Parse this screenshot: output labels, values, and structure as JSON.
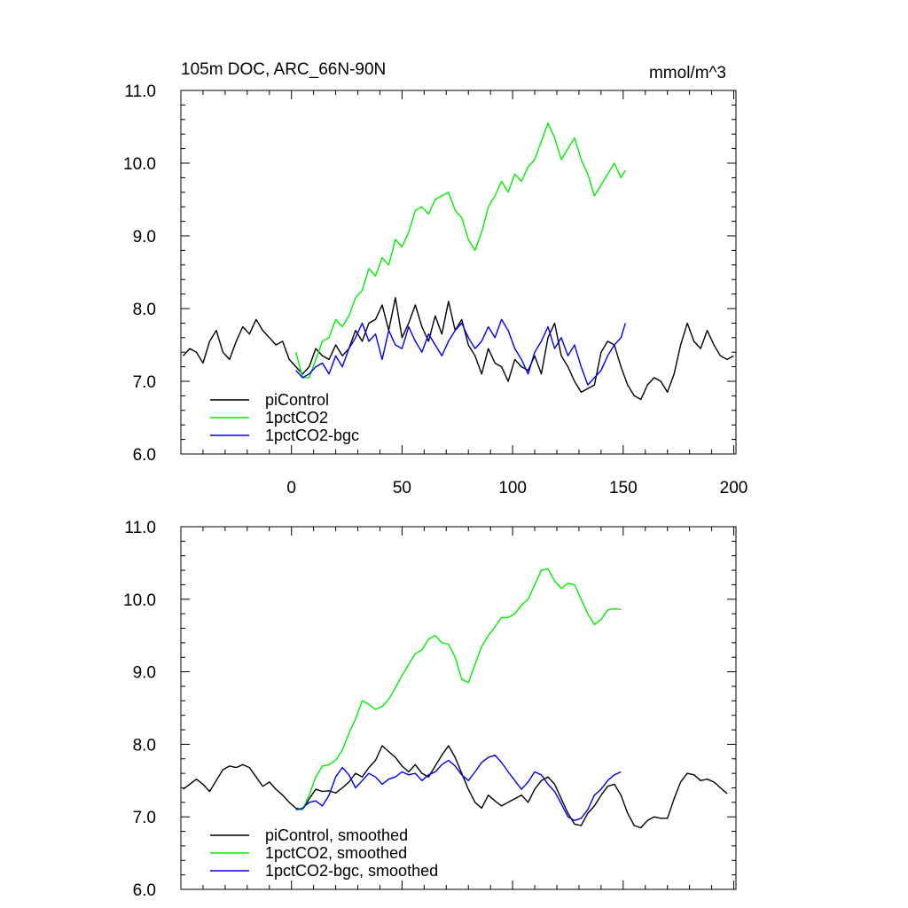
{
  "chart_data": [
    {
      "type": "line",
      "title": "105m DOC, ARC_66N-90N",
      "units": "mmol/m^3",
      "xlabel": "",
      "ylabel": "",
      "xlim": [
        -50,
        201
      ],
      "ylim": [
        6.0,
        11.0
      ],
      "yticks": [
        "6.0",
        "7.0",
        "8.0",
        "9.0",
        "10.0",
        "11.0"
      ],
      "xticks": [
        "0",
        "50",
        "100",
        "150",
        "200"
      ],
      "grid": false,
      "legend_position": "bottom-left",
      "series": [
        {
          "name": "piControl",
          "color": "#000000",
          "x": [
            -49,
            -46,
            -43,
            -40,
            -37,
            -34,
            -31,
            -28,
            -25,
            -22,
            -19,
            -16,
            -13,
            -10,
            -7,
            -4,
            -1,
            2,
            5,
            8,
            11,
            14,
            17,
            20,
            23,
            26,
            29,
            32,
            35,
            38,
            41,
            44,
            47,
            50,
            53,
            56,
            59,
            62,
            65,
            68,
            71,
            74,
            77,
            80,
            83,
            86,
            89,
            92,
            95,
            98,
            101,
            104,
            107,
            110,
            113,
            116,
            119,
            122,
            125,
            128,
            131,
            134,
            137,
            140,
            143,
            146,
            149,
            152,
            155,
            158,
            161,
            164,
            167,
            170,
            173,
            176,
            179,
            182,
            185,
            188,
            191,
            194,
            197,
            200
          ],
          "values": [
            7.35,
            7.45,
            7.4,
            7.25,
            7.55,
            7.7,
            7.4,
            7.3,
            7.55,
            7.75,
            7.65,
            7.85,
            7.7,
            7.6,
            7.5,
            7.55,
            7.3,
            7.2,
            7.1,
            7.2,
            7.45,
            7.35,
            7.3,
            7.5,
            7.35,
            7.45,
            7.7,
            7.55,
            7.8,
            7.85,
            8.05,
            7.7,
            8.15,
            7.6,
            7.8,
            8.05,
            7.75,
            7.55,
            7.9,
            7.65,
            8.1,
            7.7,
            7.85,
            7.5,
            7.35,
            7.1,
            7.45,
            7.25,
            7.2,
            7.0,
            7.3,
            7.2,
            7.15,
            7.35,
            7.1,
            7.6,
            7.8,
            7.35,
            7.2,
            7.0,
            6.85,
            6.9,
            6.95,
            7.4,
            7.55,
            7.5,
            7.2,
            6.95,
            6.8,
            6.75,
            6.95,
            7.05,
            7.0,
            6.85,
            7.1,
            7.5,
            7.8,
            7.55,
            7.45,
            7.7,
            7.5,
            7.35,
            7.3,
            7.35
          ]
        },
        {
          "name": "1pctCO2",
          "color": "#00ee00",
          "x": [
            2,
            5,
            8,
            11,
            14,
            17,
            20,
            23,
            26,
            29,
            32,
            35,
            38,
            41,
            44,
            47,
            50,
            53,
            56,
            59,
            62,
            65,
            68,
            71,
            74,
            77,
            80,
            83,
            86,
            89,
            92,
            95,
            98,
            101,
            104,
            107,
            110,
            113,
            116,
            119,
            122,
            125,
            128,
            131,
            134,
            137,
            140,
            143,
            146,
            149,
            151
          ],
          "values": [
            7.4,
            7.05,
            7.05,
            7.3,
            7.55,
            7.6,
            7.85,
            7.75,
            7.9,
            8.15,
            8.25,
            8.55,
            8.45,
            8.7,
            8.6,
            8.95,
            8.85,
            9.05,
            9.35,
            9.4,
            9.3,
            9.5,
            9.55,
            9.6,
            9.35,
            9.25,
            8.95,
            8.8,
            9.05,
            9.4,
            9.55,
            9.75,
            9.6,
            9.85,
            9.75,
            9.95,
            10.05,
            10.3,
            10.55,
            10.35,
            10.05,
            10.2,
            10.35,
            10.05,
            9.85,
            9.55,
            9.7,
            9.85,
            10.0,
            9.8,
            9.9
          ]
        },
        {
          "name": "1pctCO2-bgc",
          "color": "#0000ee",
          "x": [
            2,
            5,
            8,
            11,
            14,
            17,
            20,
            23,
            26,
            29,
            32,
            35,
            38,
            41,
            44,
            47,
            50,
            53,
            56,
            59,
            62,
            65,
            68,
            71,
            74,
            77,
            80,
            83,
            86,
            89,
            92,
            95,
            98,
            101,
            104,
            107,
            110,
            113,
            116,
            119,
            122,
            125,
            128,
            131,
            134,
            137,
            140,
            143,
            146,
            149,
            151
          ],
          "values": [
            7.15,
            7.05,
            7.1,
            7.2,
            7.25,
            7.1,
            7.35,
            7.2,
            7.45,
            7.6,
            7.8,
            7.55,
            7.65,
            7.3,
            7.7,
            7.5,
            7.45,
            7.75,
            7.55,
            7.4,
            7.65,
            7.5,
            7.35,
            7.55,
            7.7,
            7.8,
            7.6,
            7.45,
            7.55,
            7.75,
            7.6,
            7.85,
            7.7,
            7.45,
            7.3,
            7.1,
            7.4,
            7.55,
            7.75,
            7.45,
            7.6,
            7.35,
            7.5,
            7.2,
            6.95,
            7.05,
            7.15,
            7.35,
            7.5,
            7.6,
            7.8
          ]
        }
      ]
    },
    {
      "type": "line",
      "title": "",
      "xlabel": "",
      "ylabel": "",
      "xlim": [
        -50,
        201
      ],
      "ylim": [
        6.0,
        11.0
      ],
      "yticks": [
        "6.0",
        "7.0",
        "8.0",
        "9.0",
        "10.0",
        "11.0"
      ],
      "grid": false,
      "legend_position": "bottom-left",
      "series": [
        {
          "name": "piControl, smoothed",
          "color": "#000000",
          "x": [
            -49,
            -46,
            -43,
            -40,
            -37,
            -34,
            -31,
            -28,
            -25,
            -22,
            -19,
            -16,
            -13,
            -10,
            -7,
            -4,
            -1,
            2,
            5,
            8,
            11,
            14,
            17,
            20,
            23,
            26,
            29,
            32,
            35,
            38,
            41,
            44,
            47,
            50,
            53,
            56,
            59,
            62,
            65,
            68,
            71,
            74,
            77,
            80,
            83,
            86,
            89,
            92,
            95,
            98,
            101,
            104,
            107,
            110,
            113,
            116,
            119,
            122,
            125,
            128,
            131,
            134,
            137,
            140,
            143,
            146,
            149,
            152,
            155,
            158,
            161,
            164,
            167,
            170,
            173,
            176,
            179,
            182,
            185,
            188,
            191,
            194,
            197
          ],
          "values": [
            7.38,
            7.45,
            7.52,
            7.45,
            7.35,
            7.5,
            7.65,
            7.7,
            7.68,
            7.72,
            7.68,
            7.55,
            7.42,
            7.48,
            7.38,
            7.3,
            7.2,
            7.12,
            7.1,
            7.25,
            7.38,
            7.35,
            7.36,
            7.33,
            7.4,
            7.48,
            7.6,
            7.55,
            7.68,
            7.78,
            7.98,
            7.9,
            7.82,
            7.7,
            7.62,
            7.72,
            7.6,
            7.55,
            7.7,
            7.85,
            7.98,
            7.82,
            7.6,
            7.38,
            7.2,
            7.12,
            7.3,
            7.22,
            7.15,
            7.2,
            7.25,
            7.3,
            7.2,
            7.38,
            7.5,
            7.55,
            7.45,
            7.25,
            7.05,
            6.9,
            6.88,
            7.05,
            7.15,
            7.3,
            7.42,
            7.45,
            7.3,
            7.05,
            6.88,
            6.85,
            6.95,
            7.0,
            6.98,
            6.98,
            7.25,
            7.48,
            7.6,
            7.58,
            7.5,
            7.52,
            7.48,
            7.4,
            7.32
          ]
        },
        {
          "name": "1pctCO2, smoothed",
          "color": "#00ee00",
          "x": [
            2,
            5,
            8,
            11,
            14,
            17,
            20,
            23,
            26,
            29,
            32,
            35,
            38,
            41,
            44,
            47,
            50,
            53,
            56,
            59,
            62,
            65,
            68,
            71,
            74,
            77,
            80,
            83,
            86,
            89,
            92,
            95,
            98,
            101,
            104,
            107,
            110,
            113,
            116,
            119,
            122,
            125,
            128,
            131,
            134,
            137,
            140,
            143,
            146,
            149
          ],
          "values": [
            7.1,
            7.1,
            7.3,
            7.55,
            7.7,
            7.72,
            7.78,
            7.92,
            8.15,
            8.35,
            8.6,
            8.55,
            8.48,
            8.52,
            8.62,
            8.78,
            8.95,
            9.1,
            9.25,
            9.3,
            9.45,
            9.5,
            9.4,
            9.38,
            9.2,
            8.9,
            8.85,
            9.1,
            9.35,
            9.5,
            9.62,
            9.75,
            9.75,
            9.8,
            9.92,
            10.0,
            10.2,
            10.4,
            10.42,
            10.25,
            10.15,
            10.22,
            10.2,
            10.0,
            9.8,
            9.65,
            9.72,
            9.85,
            9.87,
            9.86
          ]
        },
        {
          "name": "1pctCO2-bgc, smoothed",
          "color": "#0000ee",
          "x": [
            2,
            5,
            8,
            11,
            14,
            17,
            20,
            23,
            26,
            29,
            32,
            35,
            38,
            41,
            44,
            47,
            50,
            53,
            56,
            59,
            62,
            65,
            68,
            71,
            74,
            77,
            80,
            83,
            86,
            89,
            92,
            95,
            98,
            101,
            104,
            107,
            110,
            113,
            116,
            119,
            122,
            125,
            128,
            131,
            134,
            137,
            140,
            143,
            146,
            149
          ],
          "values": [
            7.1,
            7.12,
            7.2,
            7.22,
            7.15,
            7.3,
            7.55,
            7.68,
            7.58,
            7.4,
            7.5,
            7.6,
            7.55,
            7.45,
            7.52,
            7.55,
            7.62,
            7.58,
            7.6,
            7.5,
            7.58,
            7.62,
            7.72,
            7.78,
            7.7,
            7.58,
            7.5,
            7.62,
            7.75,
            7.82,
            7.85,
            7.75,
            7.62,
            7.5,
            7.38,
            7.48,
            7.62,
            7.58,
            7.45,
            7.35,
            7.18,
            7.0,
            6.95,
            6.98,
            7.1,
            7.3,
            7.38,
            7.5,
            7.58,
            7.62
          ]
        }
      ]
    }
  ]
}
